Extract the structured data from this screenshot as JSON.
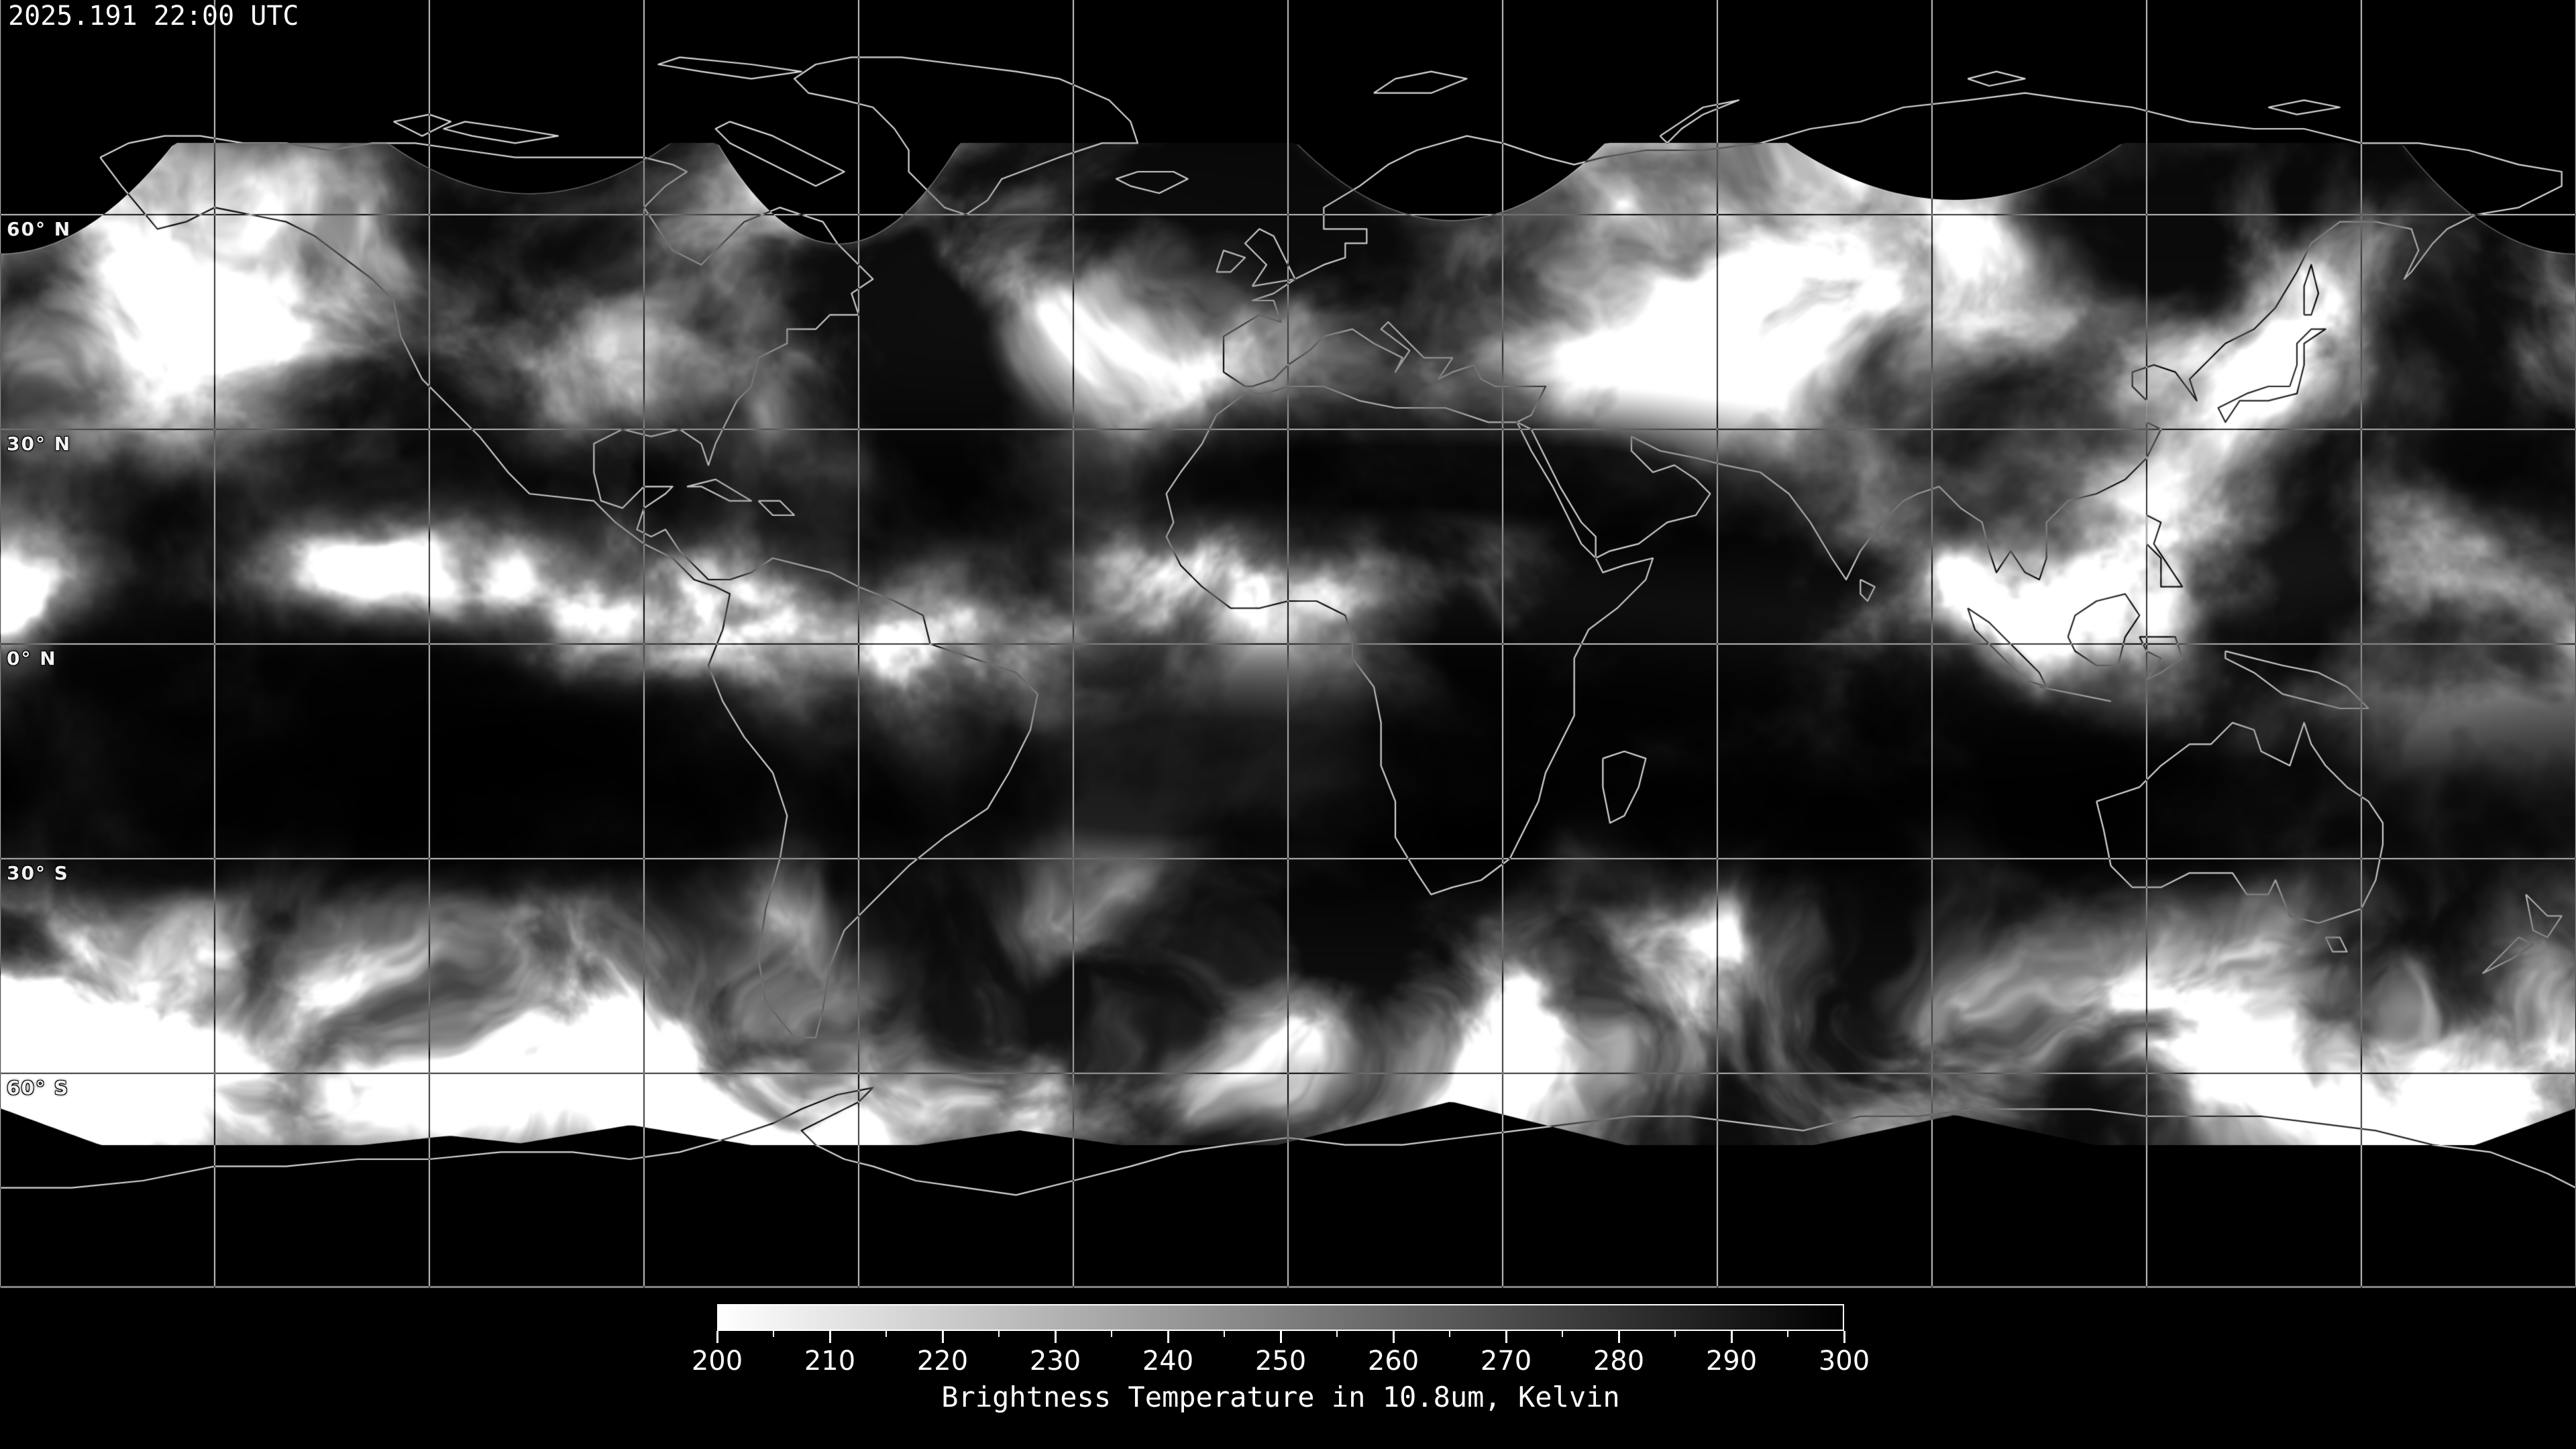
{
  "header": {
    "timestamp": "2025.191 22:00 UTC"
  },
  "map": {
    "background_color": "#000000",
    "grid_color": "#c8c8c8",
    "coastline_color": "#d8d8d8",
    "label_color": "#f2f2f2",
    "grid_interval_deg": 30,
    "latitude_labels": [
      {
        "text": "60° N",
        "lat": 60
      },
      {
        "text": "30° N",
        "lat": 30
      },
      {
        "text": "0° N",
        "lat": 0
      },
      {
        "text": "30° S",
        "lat": -30
      },
      {
        "text": "60° S",
        "lat": -60
      }
    ]
  },
  "colorbar": {
    "min": 200,
    "max": 300,
    "major_ticks": [
      200,
      210,
      220,
      230,
      240,
      250,
      260,
      270,
      280,
      290,
      300
    ],
    "minor_tick_step": 5,
    "gradient_start_color": "#ffffff",
    "gradient_end_color": "#000000",
    "caption": "Brightness Temperature in 10.8um, Kelvin"
  }
}
